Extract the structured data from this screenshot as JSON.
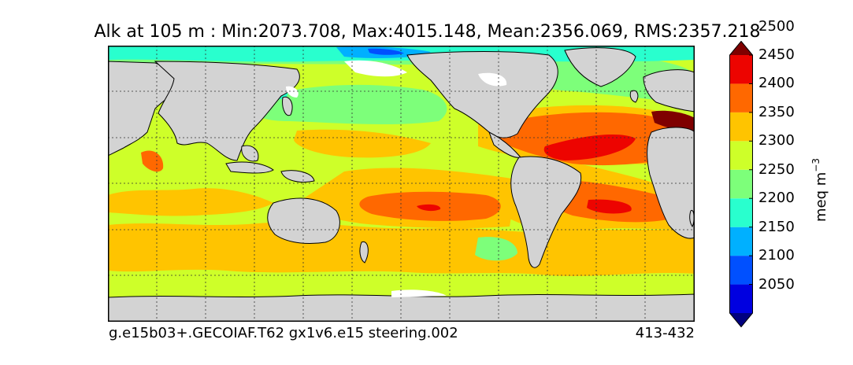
{
  "title": "Alk at 105 m : Min:2073.708, Max:4015.148, Mean:2356.069, RMS:2357.218",
  "footer": {
    "case_name": "g.e15b03+.GECOIAF.T62 gx1v6.e15 steering.002",
    "years": "413-432"
  },
  "colorbar": {
    "unit": "meq m",
    "unit_exponent": "−3",
    "levels": [
      "2050",
      "2100",
      "2150",
      "2200",
      "2250",
      "2300",
      "2350",
      "2400",
      "2450",
      "2500"
    ],
    "colors": [
      "#00007f",
      "#0000e0",
      "#0050ff",
      "#00b0ff",
      "#29ffce",
      "#7dff7a",
      "#ceff29",
      "#ffc400",
      "#ff6800",
      "#ed0400",
      "#7f0000"
    ],
    "extend": "both"
  },
  "map_colors": {
    "land": "#d3d3d3",
    "ice": "#ffffff"
  }
}
